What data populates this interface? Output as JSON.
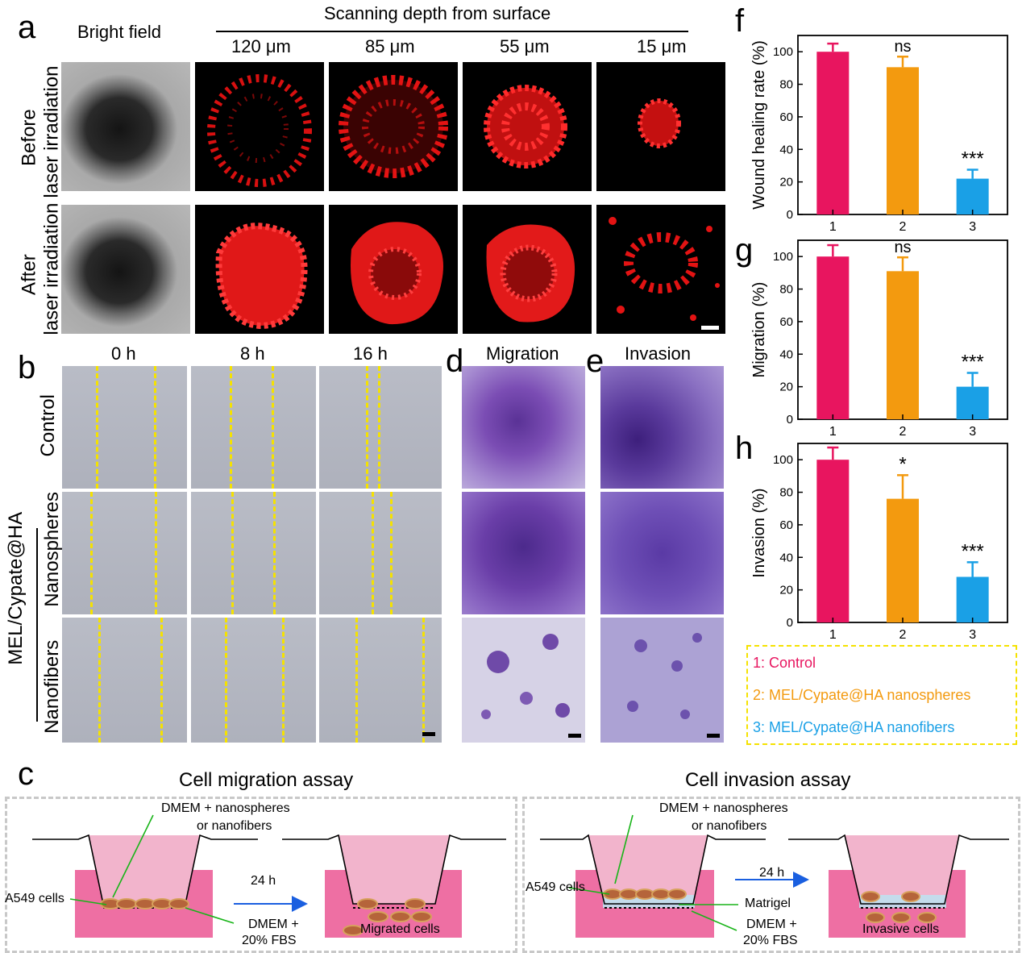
{
  "panel_letters": {
    "a": "a",
    "b": "b",
    "c": "c",
    "d": "d",
    "e": "e",
    "f": "f",
    "g": "g",
    "h": "h"
  },
  "panel_a": {
    "bright_field_label": "Bright field",
    "scanning_title": "Scanning depth from surface",
    "depths": [
      "120 μm",
      "85 μm",
      "55 μm",
      "15 μm"
    ],
    "row_before": [
      "Before",
      "laser irradiation"
    ],
    "row_after": [
      "After",
      "laser irradiation"
    ]
  },
  "panel_b": {
    "times": [
      "0 h",
      "8 h",
      "16 h"
    ],
    "row_control": "Control",
    "group_label": "MEL/Cypate@HA",
    "row_nanospheres": "Nanospheres",
    "row_nanofibers": "Nanofibers"
  },
  "panel_d": {
    "title": "Migration"
  },
  "panel_e": {
    "title": "Invasion"
  },
  "panel_c": {
    "migration_title": "Cell migration assay",
    "invasion_title": "Cell invasion assay",
    "migration": {
      "medium_label_1": "DMEM + nanospheres",
      "medium_label_2": "or nanofibers",
      "cells_label": "A549 cells",
      "time_label": "24 h",
      "bottom_label_1": "DMEM +",
      "bottom_label_2": "20% FBS",
      "result_label": "Migrated cells"
    },
    "invasion": {
      "medium_label_1": "DMEM + nanospheres",
      "medium_label_2": "or nanofibers",
      "cells_label": "A549 cells",
      "matrigel_label": "Matrigel",
      "time_label": "24 h",
      "bottom_label_1": "DMEM +",
      "bottom_label_2": "20% FBS",
      "result_label": "Invasive cells"
    }
  },
  "legend": {
    "items": [
      "1: Control",
      "2: MEL/Cypate@HA nanospheres",
      "3: MEL/Cypate@HA nanofibers"
    ],
    "colors": [
      "#e8155f",
      "#f39a0f",
      "#1aa0e6"
    ]
  },
  "chart_data": [
    {
      "type": "bar",
      "panel": "f",
      "categories": [
        "1",
        "2",
        "3"
      ],
      "values": [
        100,
        90.5,
        22
      ],
      "errors": [
        5,
        6.5,
        5.5
      ],
      "significance": [
        "",
        "ns",
        "***"
      ],
      "ylabel": "Wound healing rate (%)",
      "yticks": [
        "0",
        "20",
        "40",
        "60",
        "80",
        "100"
      ],
      "ylim": [
        0,
        110
      ],
      "colors": [
        "#e8155f",
        "#f39a0f",
        "#1aa0e6"
      ]
    },
    {
      "type": "bar",
      "panel": "g",
      "categories": [
        "1",
        "2",
        "3"
      ],
      "values": [
        100,
        91,
        20
      ],
      "errors": [
        7,
        8.5,
        8.5
      ],
      "significance": [
        "",
        "ns",
        "***"
      ],
      "ylabel": "Migration (%)",
      "yticks": [
        "0",
        "20",
        "40",
        "60",
        "80",
        "100"
      ],
      "ylim": [
        0,
        110
      ],
      "colors": [
        "#e8155f",
        "#f39a0f",
        "#1aa0e6"
      ]
    },
    {
      "type": "bar",
      "panel": "h",
      "categories": [
        "1",
        "2",
        "3"
      ],
      "values": [
        100,
        76,
        28
      ],
      "errors": [
        7.5,
        14.5,
        9
      ],
      "significance": [
        "",
        "*",
        "***"
      ],
      "ylabel": "Invasion (%)",
      "yticks": [
        "0",
        "20",
        "40",
        "60",
        "80",
        "100"
      ],
      "ylim": [
        0,
        110
      ],
      "colors": [
        "#e8155f",
        "#f39a0f",
        "#1aa0e6"
      ]
    }
  ]
}
